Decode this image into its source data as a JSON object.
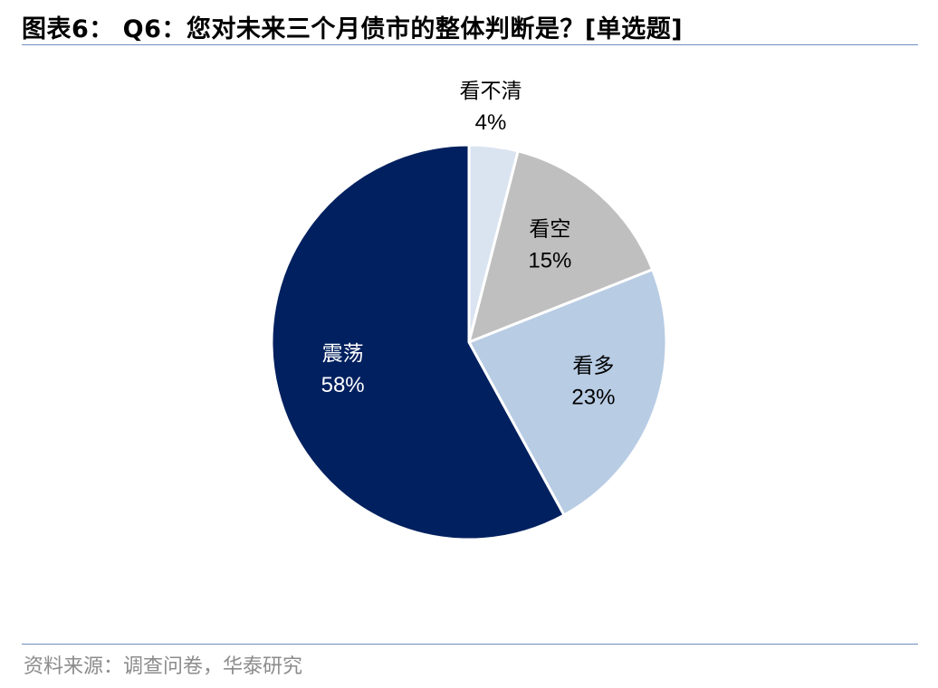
{
  "header": {
    "title": "图表6： Q6：您对未来三个月债市的整体判断是？[单选题]"
  },
  "footer": {
    "source": "资料来源：调查问卷，华泰研究"
  },
  "chart_data": {
    "type": "pie",
    "slices": [
      {
        "label": "看不清",
        "value": 4,
        "value_label": "4%",
        "color": "#dae4f1",
        "label_color": "#000000",
        "label_position": "outside"
      },
      {
        "label": "看空",
        "value": 15,
        "value_label": "15%",
        "color": "#bfbfbf",
        "label_color": "#000000",
        "label_position": "inside"
      },
      {
        "label": "看多",
        "value": 23,
        "value_label": "23%",
        "color": "#b8cce4",
        "label_color": "#000000",
        "label_position": "inside"
      },
      {
        "label": "震荡",
        "value": 58,
        "value_label": "58%",
        "color": "#00205f",
        "label_color": "#ffffff",
        "label_position": "inside"
      }
    ],
    "start_angle": "12 o'clock",
    "direction": "clockwise",
    "legend": "none",
    "slice_border_color": "#ffffff"
  }
}
